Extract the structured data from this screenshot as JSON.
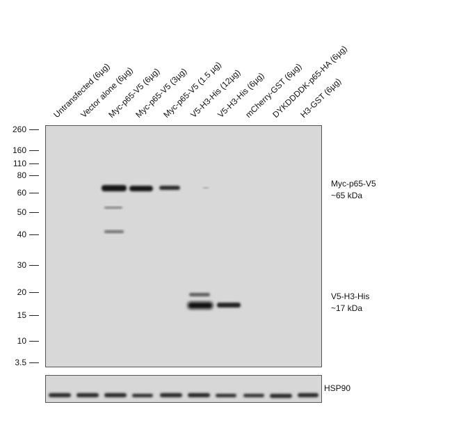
{
  "lanes": [
    "Untransfected (6µg)",
    "Vector alone (6µg)",
    "Myc-p65-V5 (6µg)",
    "Myc-p65-V5 (3µg)",
    "Myc-p65-V5 (1.5 µg)",
    "V5-H3-His (12µg)",
    "V5-H3-His (6µg)",
    "mCherry-GST (6µg)",
    "DYKDDDDK-p65-HA (6µg)",
    "H3-GST (6µg)"
  ],
  "markers": [
    "260",
    "160",
    "110",
    "80",
    "60",
    "50",
    "40",
    "30",
    "20",
    "15",
    "10",
    "3.5"
  ],
  "annotations": {
    "p65_name": "Myc-p65-V5",
    "p65_size": "~65 kDa",
    "h3_name": "V5-H3-His",
    "h3_size": "~17 kDa",
    "loading_control": "HSP90"
  },
  "colors": {
    "membrane": "#d8d8d8",
    "band": "#1a1a1a"
  }
}
